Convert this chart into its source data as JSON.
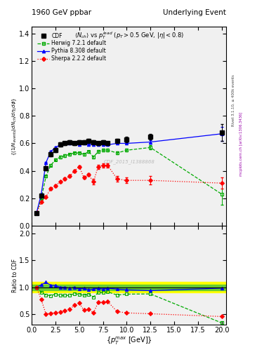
{
  "title_left": "1960 GeV ppbar",
  "title_right": "Underlying Event",
  "subtitle": "$\\langle N_{ch}\\rangle$ vs $p_T^{lead}$ ($p_T > 0.5$ GeV, $|\\eta| < 0.8$)",
  "ylabel_main": "$\\{(1/N_{events}) dN_{ch}/d\\eta_1 d\\phi\\}$",
  "ylabel_ratio": "Ratio to CDF",
  "xlabel": "$\\{p_T^{max}$ [GeV]$\\}$",
  "watermark": "CDF_2015_I1388868",
  "rivet_text": "Rivet 3.1.10, ≥ 400k events",
  "arxiv_text": "mcplots.cern.ch [arXiv:1306.3436]",
  "cdf": {
    "x": [
      0.5,
      1.0,
      1.5,
      2.0,
      2.5,
      3.0,
      3.5,
      4.0,
      4.5,
      5.0,
      5.5,
      6.0,
      6.5,
      7.0,
      7.5,
      8.0,
      9.0,
      10.0,
      12.5,
      20.0
    ],
    "y": [
      0.09,
      0.22,
      0.42,
      0.52,
      0.55,
      0.59,
      0.6,
      0.61,
      0.6,
      0.61,
      0.61,
      0.62,
      0.61,
      0.6,
      0.61,
      0.6,
      0.62,
      0.63,
      0.65,
      0.68
    ],
    "yerr": [
      0.005,
      0.01,
      0.015,
      0.015,
      0.015,
      0.015,
      0.015,
      0.015,
      0.015,
      0.015,
      0.015,
      0.015,
      0.015,
      0.015,
      0.015,
      0.015,
      0.015,
      0.02,
      0.02,
      0.06
    ],
    "color": "black",
    "label": "CDF",
    "marker": "s",
    "markersize": 4
  },
  "herwig": {
    "x": [
      0.5,
      1.0,
      1.5,
      2.0,
      2.5,
      3.0,
      3.5,
      4.0,
      4.5,
      5.0,
      5.5,
      6.0,
      6.5,
      7.0,
      7.5,
      8.0,
      9.0,
      10.0,
      12.5,
      20.0
    ],
    "y": [
      0.09,
      0.2,
      0.36,
      0.44,
      0.48,
      0.5,
      0.51,
      0.52,
      0.53,
      0.53,
      0.52,
      0.54,
      0.5,
      0.54,
      0.55,
      0.55,
      0.53,
      0.55,
      0.57,
      0.23
    ],
    "yerr": [
      0.002,
      0.005,
      0.007,
      0.008,
      0.008,
      0.008,
      0.008,
      0.008,
      0.008,
      0.008,
      0.008,
      0.008,
      0.01,
      0.01,
      0.01,
      0.01,
      0.01,
      0.01,
      0.015,
      0.08
    ],
    "color": "#00aa00",
    "label": "Herwig 7.2.1 default",
    "marker": "s",
    "markersize": 3,
    "linestyle": "--"
  },
  "pythia": {
    "x": [
      0.5,
      1.0,
      1.5,
      2.0,
      2.5,
      3.0,
      3.5,
      4.0,
      4.5,
      5.0,
      5.5,
      6.0,
      6.5,
      7.0,
      7.5,
      8.0,
      9.0,
      10.0,
      12.5,
      20.0
    ],
    "y": [
      0.09,
      0.23,
      0.46,
      0.54,
      0.57,
      0.59,
      0.6,
      0.6,
      0.6,
      0.59,
      0.6,
      0.59,
      0.59,
      0.59,
      0.59,
      0.59,
      0.6,
      0.6,
      0.61,
      0.67
    ],
    "yerr": [
      0.001,
      0.004,
      0.005,
      0.006,
      0.006,
      0.006,
      0.006,
      0.006,
      0.006,
      0.006,
      0.006,
      0.006,
      0.008,
      0.008,
      0.008,
      0.008,
      0.01,
      0.01,
      0.012,
      0.05
    ],
    "color": "blue",
    "label": "Pythia 8.308 default",
    "marker": "^",
    "markersize": 3,
    "linestyle": "-"
  },
  "sherpa": {
    "x": [
      0.5,
      1.0,
      1.5,
      2.0,
      2.5,
      3.0,
      3.5,
      4.0,
      4.5,
      5.0,
      5.5,
      6.0,
      6.5,
      7.0,
      7.5,
      8.0,
      9.0,
      10.0,
      12.5,
      20.0
    ],
    "y": [
      0.09,
      0.17,
      0.21,
      0.27,
      0.29,
      0.32,
      0.34,
      0.36,
      0.4,
      0.43,
      0.35,
      0.37,
      0.32,
      0.43,
      0.44,
      0.44,
      0.34,
      0.33,
      0.33,
      0.31
    ],
    "yerr": [
      0.002,
      0.005,
      0.007,
      0.008,
      0.008,
      0.008,
      0.01,
      0.01,
      0.01,
      0.01,
      0.01,
      0.01,
      0.02,
      0.015,
      0.015,
      0.015,
      0.02,
      0.02,
      0.03,
      0.04
    ],
    "color": "red",
    "label": "Sherpa 2.2.2 default",
    "marker": "D",
    "markersize": 3,
    "linestyle": ":"
  },
  "ylim_main": [
    0.0,
    1.45
  ],
  "ylim_ratio": [
    0.3,
    2.15
  ],
  "xlim": [
    0.0,
    20.5
  ],
  "main_yticks": [
    0.0,
    0.2,
    0.4,
    0.6,
    0.8,
    1.0,
    1.2,
    1.4
  ],
  "ratio_yticks": [
    0.5,
    1.0,
    1.5,
    2.0
  ],
  "band_yellow": 0.1,
  "band_green": 0.05,
  "bg_color": "#f0f0f0"
}
